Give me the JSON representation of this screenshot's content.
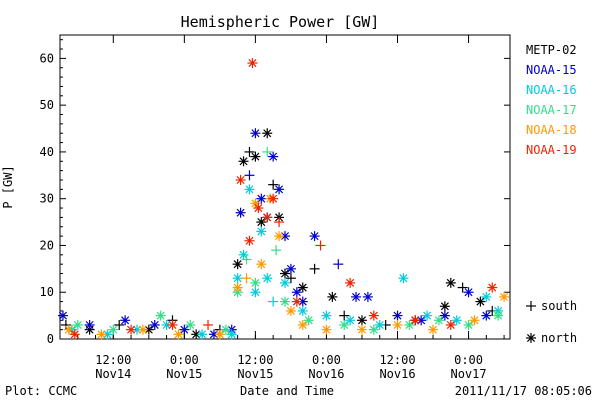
{
  "chart_data": {
    "type": "scatter",
    "title": "Hemispheric Power [GW]",
    "xlabel": "Date and Time",
    "ylabel": "P [GW]",
    "ylim": [
      0,
      65
    ],
    "yticks": [
      0,
      10,
      20,
      30,
      40,
      50,
      60
    ],
    "xlim": [
      "2011-11-14T03:00",
      "2011-11-17T07:00"
    ],
    "xticks": [
      {
        "time": "2011-11-14T12:00",
        "line1": "12:00",
        "line2": "Nov14"
      },
      {
        "time": "2011-11-15T00:00",
        "line1": "0:00",
        "line2": "Nov15"
      },
      {
        "time": "2011-11-15T12:00",
        "line1": "12:00",
        "line2": "Nov15"
      },
      {
        "time": "2011-11-16T00:00",
        "line1": "0:00",
        "line2": "Nov16"
      },
      {
        "time": "2011-11-16T12:00",
        "line1": "12:00",
        "line2": "Nov16"
      },
      {
        "time": "2011-11-17T00:00",
        "line1": "0:00",
        "line2": "Nov17"
      }
    ],
    "legend": {
      "placement": "right",
      "marker_key": [
        {
          "symbol": "+",
          "label": "south"
        },
        {
          "symbol": "*",
          "label": "north"
        }
      ]
    },
    "series": [
      {
        "name": "METP-02",
        "color": "#000000",
        "points": [
          [
            "2011-11-14T04:00",
            3,
            "+"
          ],
          [
            "2011-11-14T08:00",
            2,
            "*"
          ],
          [
            "2011-11-14T13:00",
            3,
            "+"
          ],
          [
            "2011-11-14T18:00",
            2,
            "*"
          ],
          [
            "2011-11-14T22:00",
            4,
            "+"
          ],
          [
            "2011-11-15T02:00",
            1,
            "*"
          ],
          [
            "2011-11-15T06:00",
            2,
            "+"
          ],
          [
            "2011-11-15T09:00",
            16,
            "*"
          ],
          [
            "2011-11-15T10:00",
            38,
            "*"
          ],
          [
            "2011-11-15T11:00",
            40,
            "+"
          ],
          [
            "2011-11-15T12:00",
            39,
            "*"
          ],
          [
            "2011-11-15T13:00",
            25,
            "*"
          ],
          [
            "2011-11-15T14:00",
            44,
            "*"
          ],
          [
            "2011-11-15T15:00",
            33,
            "+"
          ],
          [
            "2011-11-15T16:00",
            26,
            "*"
          ],
          [
            "2011-11-15T17:00",
            14,
            "*"
          ],
          [
            "2011-11-15T18:00",
            13,
            "+"
          ],
          [
            "2011-11-15T20:00",
            11,
            "*"
          ],
          [
            "2011-11-15T22:00",
            15,
            "+"
          ],
          [
            "2011-11-16T01:00",
            9,
            "*"
          ],
          [
            "2011-11-16T03:00",
            5,
            "+"
          ],
          [
            "2011-11-16T06:00",
            4,
            "*"
          ],
          [
            "2011-11-16T10:00",
            3,
            "+"
          ],
          [
            "2011-11-16T15:00",
            4,
            "*"
          ],
          [
            "2011-11-16T20:00",
            7,
            "*"
          ],
          [
            "2011-11-16T21:00",
            12,
            "*"
          ],
          [
            "2011-11-16T23:00",
            11,
            "+"
          ],
          [
            "2011-11-17T02:00",
            8,
            "*"
          ],
          [
            "2011-11-17T04:00",
            6,
            "+"
          ]
        ]
      },
      {
        "name": "NOAA-15",
        "color": "#0000cc",
        "points": [
          [
            "2011-11-14T03:30",
            5,
            "*"
          ],
          [
            "2011-11-14T08:00",
            3,
            "*"
          ],
          [
            "2011-11-14T14:00",
            4,
            "*"
          ],
          [
            "2011-11-14T19:00",
            3,
            "*"
          ],
          [
            "2011-11-15T00:00",
            2,
            "*"
          ],
          [
            "2011-11-15T05:00",
            1,
            "*"
          ],
          [
            "2011-11-15T08:00",
            2,
            "*"
          ],
          [
            "2011-11-15T09:30",
            27,
            "*"
          ],
          [
            "2011-11-15T11:00",
            35,
            "+"
          ],
          [
            "2011-11-15T12:00",
            44,
            "*"
          ],
          [
            "2011-11-15T13:00",
            30,
            "*"
          ],
          [
            "2011-11-15T14:00",
            26,
            "*"
          ],
          [
            "2011-11-15T15:00",
            39,
            "*"
          ],
          [
            "2011-11-15T16:00",
            32,
            "*"
          ],
          [
            "2011-11-15T17:00",
            22,
            "*"
          ],
          [
            "2011-11-15T18:00",
            15,
            "*"
          ],
          [
            "2011-11-15T19:00",
            10,
            "*"
          ],
          [
            "2011-11-15T20:00",
            8,
            "*"
          ],
          [
            "2011-11-15T22:00",
            22,
            "*"
          ],
          [
            "2011-11-16T02:00",
            16,
            "+"
          ],
          [
            "2011-11-16T05:00",
            9,
            "*"
          ],
          [
            "2011-11-16T07:00",
            9,
            "*"
          ],
          [
            "2011-11-16T12:00",
            5,
            "*"
          ],
          [
            "2011-11-16T16:00",
            4,
            "*"
          ],
          [
            "2011-11-16T20:00",
            5,
            "*"
          ],
          [
            "2011-11-17T00:00",
            10,
            "*"
          ],
          [
            "2011-11-17T03:00",
            5,
            "*"
          ]
        ]
      },
      {
        "name": "NOAA-16",
        "color": "#00ccdd",
        "points": [
          [
            "2011-11-14T05:00",
            2,
            "*"
          ],
          [
            "2011-11-14T11:00",
            1,
            "*"
          ],
          [
            "2011-11-14T16:00",
            2,
            "*"
          ],
          [
            "2011-11-14T21:00",
            3,
            "*"
          ],
          [
            "2011-11-15T03:00",
            1,
            "*"
          ],
          [
            "2011-11-15T08:00",
            1,
            "*"
          ],
          [
            "2011-11-15T09:00",
            13,
            "*"
          ],
          [
            "2011-11-15T10:00",
            18,
            "*"
          ],
          [
            "2011-11-15T11:00",
            32,
            "*"
          ],
          [
            "2011-11-15T12:00",
            10,
            "*"
          ],
          [
            "2011-11-15T13:00",
            23,
            "*"
          ],
          [
            "2011-11-15T14:00",
            13,
            "*"
          ],
          [
            "2011-11-15T15:00",
            8,
            "+"
          ],
          [
            "2011-11-15T17:00",
            12,
            "*"
          ],
          [
            "2011-11-15T20:00",
            6,
            "*"
          ],
          [
            "2011-11-16T00:00",
            5,
            "*"
          ],
          [
            "2011-11-16T04:00",
            4,
            "*"
          ],
          [
            "2011-11-16T09:00",
            3,
            "*"
          ],
          [
            "2011-11-16T13:00",
            13,
            "*"
          ],
          [
            "2011-11-16T17:00",
            5,
            "*"
          ],
          [
            "2011-11-16T22:00",
            4,
            "*"
          ],
          [
            "2011-11-17T03:00",
            9,
            "*"
          ],
          [
            "2011-11-17T05:00",
            6,
            "*"
          ]
        ]
      },
      {
        "name": "NOAA-17",
        "color": "#33dd88",
        "points": [
          [
            "2011-11-14T06:00",
            3,
            "*"
          ],
          [
            "2011-11-14T12:00",
            2,
            "*"
          ],
          [
            "2011-11-14T20:00",
            5,
            "*"
          ],
          [
            "2011-11-15T01:00",
            3,
            "*"
          ],
          [
            "2011-11-15T07:00",
            2,
            "*"
          ],
          [
            "2011-11-15T09:00",
            10,
            "*"
          ],
          [
            "2011-11-15T10:30",
            17,
            "+"
          ],
          [
            "2011-11-15T12:00",
            12,
            "*"
          ],
          [
            "2011-11-15T14:00",
            40,
            "+"
          ],
          [
            "2011-11-15T15:30",
            19,
            "+"
          ],
          [
            "2011-11-15T17:00",
            8,
            "*"
          ],
          [
            "2011-11-15T21:00",
            4,
            "*"
          ],
          [
            "2011-11-16T03:00",
            3,
            "*"
          ],
          [
            "2011-11-16T08:00",
            2,
            "*"
          ],
          [
            "2011-11-16T14:00",
            3,
            "*"
          ],
          [
            "2011-11-16T19:00",
            4,
            "*"
          ],
          [
            "2011-11-17T00:00",
            3,
            "*"
          ],
          [
            "2011-11-17T05:00",
            5,
            "*"
          ]
        ]
      },
      {
        "name": "NOAA-18",
        "color": "#ff9900",
        "points": [
          [
            "2011-11-14T04:30",
            2,
            "*"
          ],
          [
            "2011-11-14T10:00",
            1,
            "*"
          ],
          [
            "2011-11-14T17:00",
            2,
            "*"
          ],
          [
            "2011-11-14T23:00",
            1,
            "*"
          ],
          [
            "2011-11-15T06:00",
            1,
            "*"
          ],
          [
            "2011-11-15T09:00",
            11,
            "*"
          ],
          [
            "2011-11-15T10:30",
            13,
            "+"
          ],
          [
            "2011-11-15T12:00",
            29,
            "*"
          ],
          [
            "2011-11-15T13:00",
            16,
            "*"
          ],
          [
            "2011-11-15T14:30",
            30,
            "*"
          ],
          [
            "2011-11-15T16:00",
            22,
            "*"
          ],
          [
            "2011-11-15T18:00",
            6,
            "*"
          ],
          [
            "2011-11-15T20:00",
            3,
            "*"
          ],
          [
            "2011-11-16T00:00",
            2,
            "*"
          ],
          [
            "2011-11-16T06:00",
            2,
            "*"
          ],
          [
            "2011-11-16T12:00",
            3,
            "*"
          ],
          [
            "2011-11-16T18:00",
            2,
            "*"
          ],
          [
            "2011-11-17T01:00",
            4,
            "*"
          ],
          [
            "2011-11-17T06:00",
            9,
            "*"
          ]
        ]
      },
      {
        "name": "NOAA-19",
        "color": "#ee2200",
        "points": [
          [
            "2011-11-14T05:30",
            1,
            "*"
          ],
          [
            "2011-11-14T15:00",
            2,
            "*"
          ],
          [
            "2011-11-14T22:00",
            3,
            "*"
          ],
          [
            "2011-11-15T04:00",
            3,
            "+"
          ],
          [
            "2011-11-15T09:30",
            34,
            "*"
          ],
          [
            "2011-11-15T11:00",
            21,
            "*"
          ],
          [
            "2011-11-15T11:30",
            59,
            "*"
          ],
          [
            "2011-11-15T12:30",
            28,
            "*"
          ],
          [
            "2011-11-15T14:00",
            26,
            "*"
          ],
          [
            "2011-11-15T15:00",
            30,
            "*"
          ],
          [
            "2011-11-15T16:00",
            25,
            "+"
          ],
          [
            "2011-11-15T19:00",
            8,
            "*"
          ],
          [
            "2011-11-15T23:00",
            20,
            "+"
          ],
          [
            "2011-11-16T04:00",
            12,
            "*"
          ],
          [
            "2011-11-16T08:00",
            5,
            "*"
          ],
          [
            "2011-11-16T15:00",
            4,
            "*"
          ],
          [
            "2011-11-16T21:00",
            3,
            "*"
          ],
          [
            "2011-11-17T04:00",
            11,
            "*"
          ]
        ]
      }
    ]
  },
  "footer": {
    "plot_credit": "Plot: CCMC",
    "timestamp": "2011/11/17 08:05:06"
  }
}
